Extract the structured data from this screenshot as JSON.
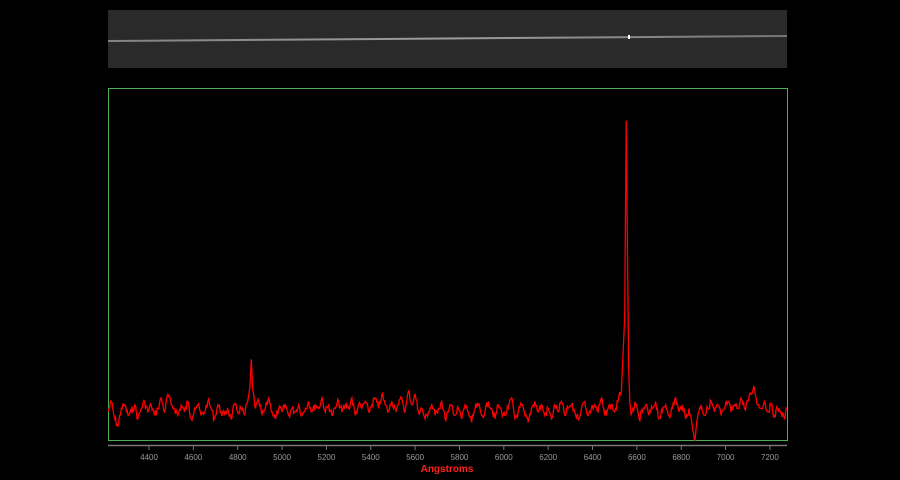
{
  "spectrum_image": {
    "description_icon": "2d-spectrum-strip",
    "background": "#2a2a2a",
    "trace": "#bbbbbb"
  },
  "chart_data": {
    "type": "line",
    "title": "",
    "xlabel": "Angstroms",
    "ylabel": "",
    "xlim": [
      4215,
      7277
    ],
    "ylim": [
      0,
      1
    ],
    "xticks": [
      4400,
      4600,
      4800,
      5000,
      5200,
      5400,
      5600,
      5800,
      6000,
      6200,
      6400,
      6600,
      6800,
      7000,
      7200
    ],
    "grid": false,
    "colors": {
      "line": "#ff0000",
      "frame": "#4caf50",
      "axis": "#888888",
      "xlabel": "#ff2020",
      "ticklabels": "#999999"
    },
    "series": [
      {
        "x": [
          4215,
          4230,
          4245,
          4260,
          4275,
          4290,
          4305,
          4320,
          4335,
          4350,
          4365,
          4380,
          4395,
          4410,
          4425,
          4440,
          4455,
          4470,
          4485,
          4500,
          4515,
          4530,
          4545,
          4560,
          4575,
          4590,
          4605,
          4620,
          4635,
          4650,
          4665,
          4680,
          4695,
          4710,
          4725,
          4740,
          4755,
          4770,
          4785,
          4800,
          4815,
          4830,
          4845,
          4855,
          4861,
          4868,
          4880,
          4895,
          4910,
          4925,
          4940,
          4955,
          4970,
          4985,
          5000,
          5015,
          5030,
          5045,
          5060,
          5075,
          5090,
          5105,
          5120,
          5135,
          5150,
          5165,
          5180,
          5195,
          5210,
          5225,
          5240,
          5255,
          5270,
          5285,
          5300,
          5315,
          5330,
          5345,
          5360,
          5375,
          5390,
          5405,
          5420,
          5435,
          5450,
          5465,
          5480,
          5495,
          5510,
          5525,
          5540,
          5555,
          5570,
          5585,
          5600,
          5615,
          5630,
          5645,
          5660,
          5675,
          5690,
          5705,
          5720,
          5735,
          5750,
          5765,
          5780,
          5795,
          5810,
          5825,
          5840,
          5855,
          5870,
          5885,
          5900,
          5915,
          5930,
          5945,
          5960,
          5975,
          5990,
          6005,
          6020,
          6035,
          6050,
          6065,
          6080,
          6095,
          6110,
          6125,
          6140,
          6155,
          6170,
          6185,
          6200,
          6215,
          6230,
          6245,
          6260,
          6275,
          6290,
          6305,
          6320,
          6335,
          6350,
          6365,
          6380,
          6395,
          6410,
          6425,
          6440,
          6455,
          6470,
          6485,
          6500,
          6515,
          6530,
          6545,
          6552,
          6558,
          6563,
          6568,
          6574,
          6582,
          6595,
          6610,
          6625,
          6640,
          6655,
          6670,
          6685,
          6700,
          6715,
          6730,
          6745,
          6760,
          6775,
          6790,
          6805,
          6820,
          6835,
          6850,
          6862,
          6870,
          6878,
          6890,
          6905,
          6920,
          6935,
          6950,
          6965,
          6980,
          6995,
          7010,
          7025,
          7040,
          7055,
          7070,
          7085,
          7100,
          7115,
          7130,
          7145,
          7160,
          7175,
          7190,
          7205,
          7220,
          7235,
          7250,
          7265,
          7277
        ],
        "y": [
          0.08,
          0.11,
          0.06,
          0.04,
          0.09,
          0.1,
          0.07,
          0.08,
          0.1,
          0.06,
          0.09,
          0.11,
          0.08,
          0.1,
          0.07,
          0.09,
          0.12,
          0.08,
          0.13,
          0.1,
          0.09,
          0.07,
          0.1,
          0.08,
          0.11,
          0.06,
          0.09,
          0.1,
          0.07,
          0.08,
          0.11,
          0.09,
          0.06,
          0.1,
          0.08,
          0.07,
          0.09,
          0.06,
          0.1,
          0.08,
          0.09,
          0.07,
          0.11,
          0.15,
          0.23,
          0.14,
          0.09,
          0.11,
          0.07,
          0.09,
          0.12,
          0.08,
          0.06,
          0.09,
          0.08,
          0.1,
          0.07,
          0.09,
          0.08,
          0.1,
          0.07,
          0.09,
          0.11,
          0.08,
          0.1,
          0.09,
          0.12,
          0.08,
          0.1,
          0.07,
          0.09,
          0.11,
          0.08,
          0.1,
          0.09,
          0.12,
          0.07,
          0.1,
          0.09,
          0.11,
          0.08,
          0.1,
          0.12,
          0.09,
          0.13,
          0.1,
          0.08,
          0.11,
          0.09,
          0.1,
          0.12,
          0.08,
          0.14,
          0.1,
          0.13,
          0.08,
          0.09,
          0.06,
          0.08,
          0.1,
          0.07,
          0.09,
          0.11,
          0.06,
          0.08,
          0.1,
          0.07,
          0.09,
          0.06,
          0.1,
          0.08,
          0.05,
          0.09,
          0.1,
          0.07,
          0.08,
          0.11,
          0.09,
          0.06,
          0.1,
          0.08,
          0.07,
          0.09,
          0.12,
          0.06,
          0.08,
          0.1,
          0.07,
          0.05,
          0.09,
          0.11,
          0.08,
          0.1,
          0.07,
          0.09,
          0.06,
          0.1,
          0.08,
          0.11,
          0.07,
          0.09,
          0.1,
          0.08,
          0.06,
          0.09,
          0.11,
          0.07,
          0.09,
          0.1,
          0.08,
          0.12,
          0.07,
          0.09,
          0.1,
          0.08,
          0.11,
          0.14,
          0.35,
          0.91,
          0.5,
          0.2,
          0.11,
          0.07,
          0.09,
          0.1,
          0.06,
          0.08,
          0.1,
          0.07,
          0.09,
          0.11,
          0.06,
          0.08,
          0.1,
          0.07,
          0.09,
          0.12,
          0.08,
          0.1,
          0.06,
          0.09,
          0.04,
          0.0,
          0.05,
          0.08,
          0.1,
          0.07,
          0.09,
          0.11,
          0.08,
          0.1,
          0.07,
          0.09,
          0.11,
          0.08,
          0.1,
          0.09,
          0.12,
          0.09,
          0.11,
          0.13,
          0.15,
          0.1,
          0.09,
          0.11,
          0.08,
          0.1,
          0.07,
          0.09,
          0.08,
          0.06,
          0.09
        ]
      }
    ]
  }
}
